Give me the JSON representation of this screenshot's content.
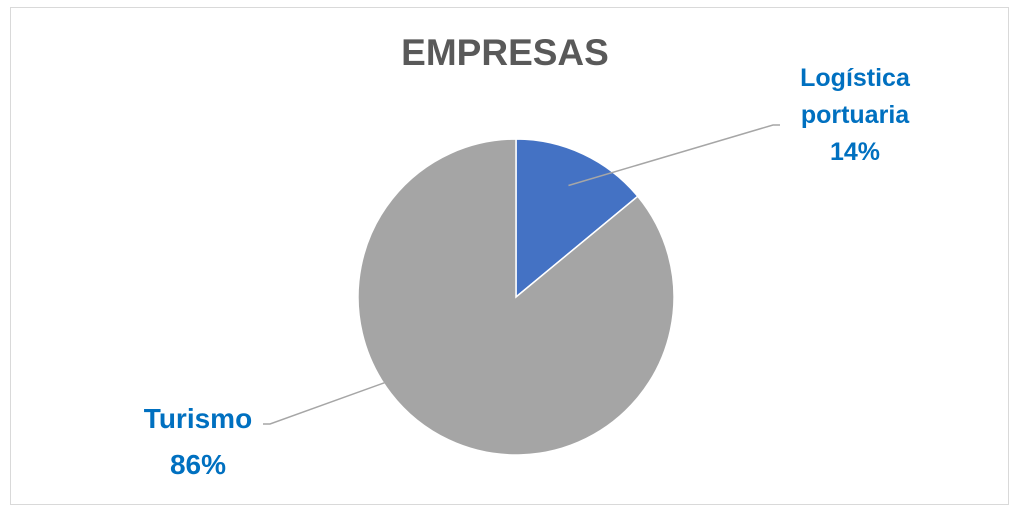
{
  "chart_data": {
    "type": "pie",
    "title": "EMPRESAS",
    "slices": [
      {
        "name": "Logística portuaria",
        "name_lines": [
          "Logística",
          "portuaria"
        ],
        "value": 14,
        "value_label": "14%",
        "color": "#4472c4"
      },
      {
        "name": "Turismo",
        "name_lines": [
          "Turismo"
        ],
        "value": 86,
        "value_label": "86%",
        "color": "#a5a5a5"
      }
    ],
    "label_color": "#0070c0",
    "title_color": "#595959",
    "start_angle": "12 o'clock",
    "direction": "clockwise",
    "legend": "none"
  }
}
